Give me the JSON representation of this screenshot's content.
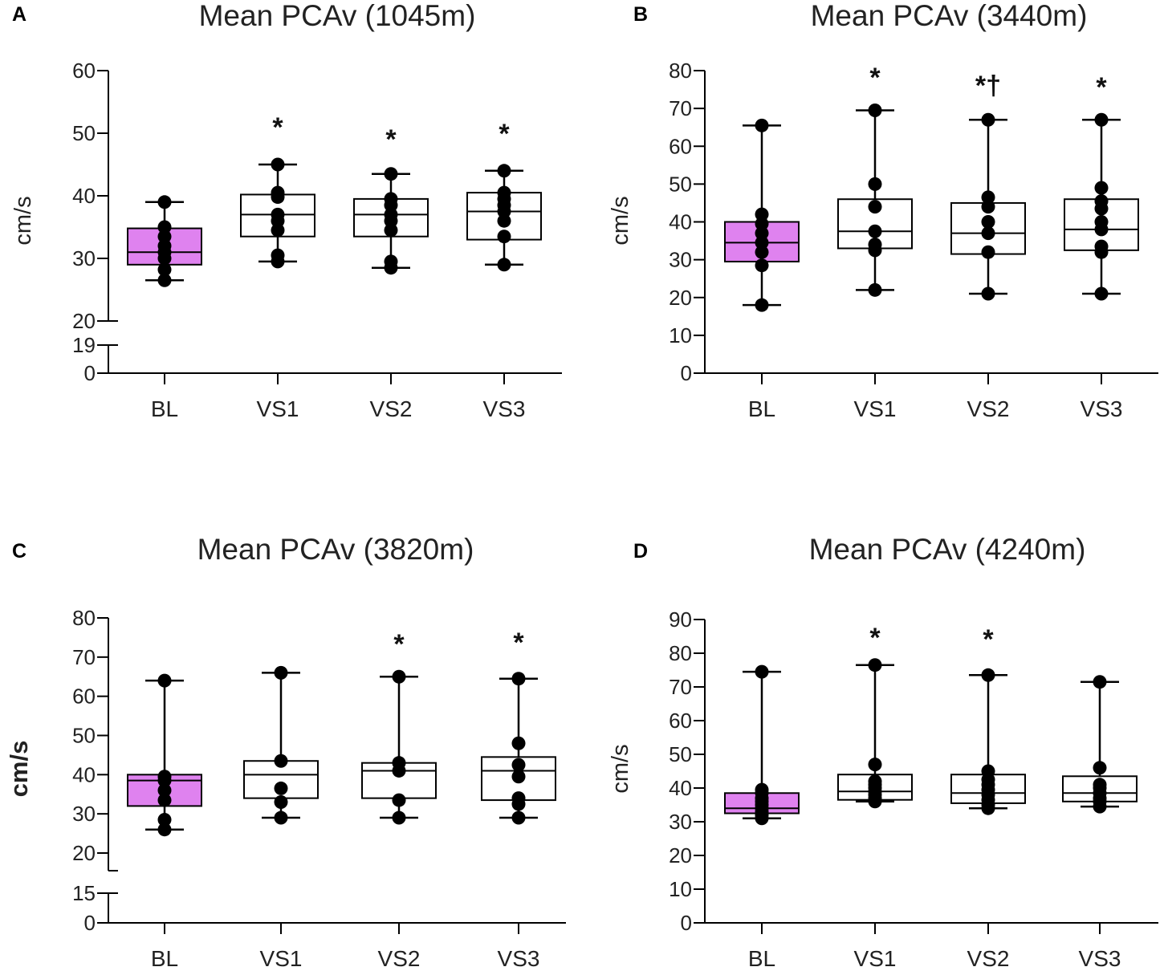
{
  "colors": {
    "baseline_fill": "#df82ef",
    "box_fill": "#ffffff",
    "ink": "#000000"
  },
  "chart_data": [
    {
      "type": "box",
      "panel": "A",
      "title": "Mean PCAv (1045m)",
      "ylabel": "cm/s",
      "ylabel_bold": false,
      "ylim": [
        0,
        60
      ],
      "axis_break": {
        "upper_start": 20,
        "lower_end": 19
      },
      "yticks": [
        0,
        19,
        20,
        30,
        40,
        50,
        60
      ],
      "categories": [
        "BL",
        "VS1",
        "VS2",
        "VS3"
      ],
      "boxes": [
        {
          "category": "BL",
          "min": 26.5,
          "q1": 29,
          "median": 31,
          "q3": 34.8,
          "max": 39,
          "points": [
            26.5,
            28.2,
            30,
            31,
            32,
            33.5,
            35,
            39
          ],
          "significance": ""
        },
        {
          "category": "VS1",
          "min": 29.5,
          "q1": 33.5,
          "median": 37,
          "q3": 40.2,
          "max": 45,
          "points": [
            29.5,
            30.5,
            34.5,
            36,
            37,
            39.8,
            40.5,
            45
          ],
          "significance": "*"
        },
        {
          "category": "VS2",
          "min": 28.5,
          "q1": 33.5,
          "median": 37,
          "q3": 39.5,
          "max": 43.5,
          "points": [
            28.5,
            29.5,
            34.5,
            36,
            37,
            38.5,
            39.5,
            43.5
          ],
          "significance": "*"
        },
        {
          "category": "VS3",
          "min": 29,
          "q1": 33,
          "median": 37.5,
          "q3": 40.5,
          "max": 44,
          "points": [
            29,
            33.5,
            36,
            37.5,
            38.5,
            39.5,
            40.5,
            44
          ],
          "significance": "*"
        }
      ]
    },
    {
      "type": "box",
      "panel": "B",
      "title": "Mean PCAv (3440m)",
      "ylabel": "cm/s",
      "ylabel_bold": false,
      "ylim": [
        0,
        80
      ],
      "axis_break": null,
      "yticks": [
        0,
        10,
        20,
        30,
        40,
        50,
        60,
        70,
        80
      ],
      "categories": [
        "BL",
        "VS1",
        "VS2",
        "VS3"
      ],
      "boxes": [
        {
          "category": "BL",
          "min": 18,
          "q1": 29.5,
          "median": 34.5,
          "q3": 40,
          "max": 65.5,
          "points": [
            18,
            28.5,
            32,
            34.5,
            37,
            39.5,
            42,
            65.5
          ],
          "significance": ""
        },
        {
          "category": "VS1",
          "min": 22,
          "q1": 33,
          "median": 37.5,
          "q3": 46,
          "max": 69.5,
          "points": [
            22,
            32.5,
            34,
            37.5,
            44,
            50,
            69.5
          ],
          "significance": "*"
        },
        {
          "category": "VS2",
          "min": 21,
          "q1": 31.5,
          "median": 37,
          "q3": 45,
          "max": 67,
          "points": [
            21,
            32,
            37,
            40,
            44,
            46.5,
            67
          ],
          "significance": "*†"
        },
        {
          "category": "VS3",
          "min": 21,
          "q1": 32.5,
          "median": 38,
          "q3": 46,
          "max": 67,
          "points": [
            21,
            32,
            33.5,
            38,
            40,
            43.5,
            45.5,
            49,
            67
          ],
          "significance": "*"
        }
      ]
    },
    {
      "type": "box",
      "panel": "C",
      "title": "Mean PCAv (3820m)",
      "ylabel": "cm/s",
      "ylabel_bold": true,
      "ylim": [
        0,
        80
      ],
      "axis_break": {
        "upper_start": 20,
        "lower_end": 15
      },
      "yticks": [
        0,
        15,
        20,
        30,
        40,
        50,
        60,
        70,
        80
      ],
      "categories": [
        "BL",
        "VS1",
        "VS2",
        "VS3"
      ],
      "boxes": [
        {
          "category": "BL",
          "min": 26,
          "q1": 32,
          "median": 38.5,
          "q3": 40,
          "max": 64,
          "points": [
            26,
            28.5,
            33.5,
            36,
            38.5,
            39.5,
            64
          ],
          "significance": ""
        },
        {
          "category": "VS1",
          "min": 29,
          "q1": 34,
          "median": 40,
          "q3": 43.5,
          "max": 66,
          "points": [
            29,
            33,
            36.5,
            43.5,
            66
          ],
          "significance": ""
        },
        {
          "category": "VS2",
          "min": 29,
          "q1": 34,
          "median": 41,
          "q3": 43,
          "max": 65,
          "points": [
            29,
            33.5,
            41,
            43,
            65
          ],
          "significance": "*"
        },
        {
          "category": "VS3",
          "min": 29,
          "q1": 33.5,
          "median": 41,
          "q3": 44.5,
          "max": 64.5,
          "points": [
            29,
            32.5,
            34,
            39.5,
            42.5,
            48,
            64.5
          ],
          "significance": "*"
        }
      ]
    },
    {
      "type": "box",
      "panel": "D",
      "title": "Mean PCAv (4240m)",
      "ylabel": "cm/s",
      "ylabel_bold": false,
      "ylim": [
        0,
        90
      ],
      "axis_break": null,
      "yticks": [
        0,
        10,
        20,
        30,
        40,
        50,
        60,
        70,
        80,
        90
      ],
      "categories": [
        "BL",
        "VS1",
        "VS2",
        "VS3"
      ],
      "boxes": [
        {
          "category": "BL",
          "min": 31,
          "q1": 32.5,
          "median": 34,
          "q3": 38.5,
          "max": 74.5,
          "points": [
            31,
            32,
            33,
            34,
            35,
            36,
            37,
            38.5,
            39.5,
            74.5
          ],
          "significance": ""
        },
        {
          "category": "VS1",
          "min": 36,
          "q1": 36.5,
          "median": 39,
          "q3": 44,
          "max": 76.5,
          "points": [
            36,
            37,
            38,
            39,
            40,
            41,
            42,
            47,
            76.5
          ],
          "significance": "*"
        },
        {
          "category": "VS2",
          "min": 34,
          "q1": 35.5,
          "median": 38.5,
          "q3": 44,
          "max": 73.5,
          "points": [
            34,
            35,
            36.5,
            38,
            39.5,
            41,
            42.5,
            45,
            73.5
          ],
          "significance": "*"
        },
        {
          "category": "VS3",
          "min": 34.5,
          "q1": 36,
          "median": 38.5,
          "q3": 43.5,
          "max": 71.5,
          "points": [
            34.5,
            36,
            37,
            38.5,
            40,
            41,
            46,
            71.5
          ],
          "significance": ""
        }
      ]
    }
  ]
}
